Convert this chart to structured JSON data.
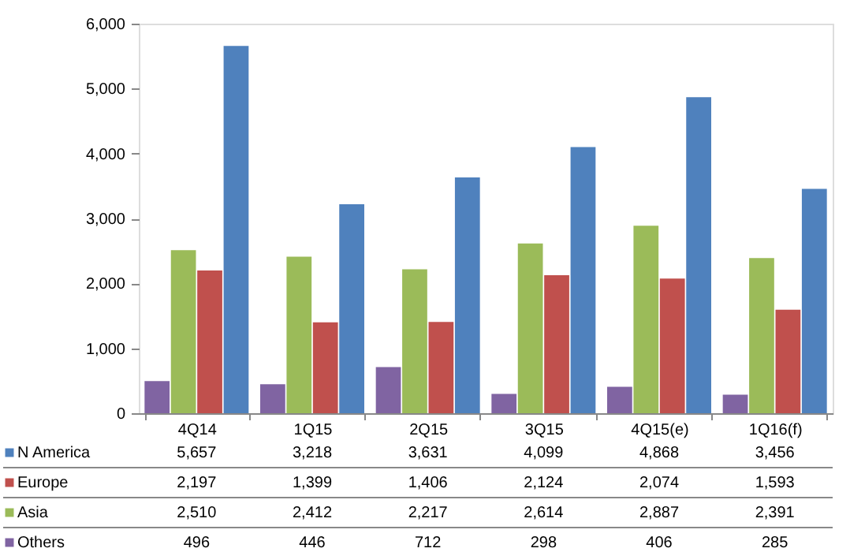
{
  "chart_data": {
    "type": "bar",
    "categories": [
      "4Q14",
      "1Q15",
      "2Q15",
      "3Q15",
      "4Q15(e)",
      "1Q16(f)"
    ],
    "series": [
      {
        "name": "N America",
        "color": "#4f81bd",
        "values": [
          5657,
          3218,
          3631,
          4099,
          4868,
          3456
        ],
        "value_labels": [
          "5,657",
          "3,218",
          "3,631",
          "4,099",
          "4,868",
          "3,456"
        ]
      },
      {
        "name": "Europe",
        "color": "#c0504d",
        "values": [
          2197,
          1399,
          1406,
          2124,
          2074,
          1593
        ],
        "value_labels": [
          "2,197",
          "1,399",
          "1,406",
          "2,124",
          "2,074",
          "1,593"
        ]
      },
      {
        "name": "Asia",
        "color": "#9bbb59",
        "values": [
          2510,
          2412,
          2217,
          2614,
          2887,
          2391
        ],
        "value_labels": [
          "2,510",
          "2,412",
          "2,217",
          "2,614",
          "2,887",
          "2,391"
        ]
      },
      {
        "name": "Others",
        "color": "#8064a2",
        "values": [
          496,
          446,
          712,
          298,
          406,
          285
        ],
        "value_labels": [
          "496",
          "446",
          "712",
          "298",
          "406",
          "285"
        ]
      }
    ],
    "ylim": [
      0,
      6000
    ],
    "yticks": [
      {
        "value": 0,
        "label": "0"
      },
      {
        "value": 1000,
        "label": "1,000"
      },
      {
        "value": 2000,
        "label": "2,000"
      },
      {
        "value": 3000,
        "label": "3,000"
      },
      {
        "value": 4000,
        "label": "4,000"
      },
      {
        "value": 5000,
        "label": "5,000"
      },
      {
        "value": 6000,
        "label": "6,000"
      }
    ],
    "grid": false,
    "legend": "bottom"
  }
}
